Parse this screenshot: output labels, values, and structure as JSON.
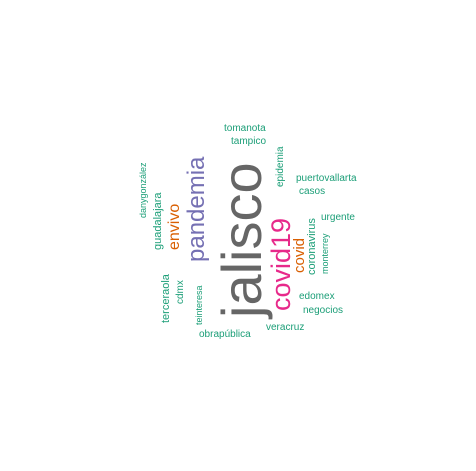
{
  "palette": {
    "green": "#1b9e77",
    "orange": "#d95f02",
    "purple": "#7570b3",
    "magenta": "#e7298a",
    "gray": "#666666"
  },
  "words": {
    "jalisco": "jalisco",
    "covid19": "covid19",
    "pandemia": "pandemia",
    "envivo": "envivo",
    "covid": "covid",
    "guadalajara": "guadalajara",
    "danygonzalez": "danygonzález",
    "terceraola": "terceraola",
    "cdmx": "cdmx",
    "teinteresa": "teinteresa",
    "obrapublica": "obrapública",
    "tomanota": "tomanota",
    "tampico": "tampico",
    "epidemia": "epidemia",
    "puertovallarta": "puertovallarta",
    "casos": "casos",
    "coronavirus": "coronavirus",
    "monterrey": "monterrey",
    "urgente": "urgente",
    "edomex": "edomex",
    "negocios": "negocios",
    "veracruz": "veracruz"
  }
}
